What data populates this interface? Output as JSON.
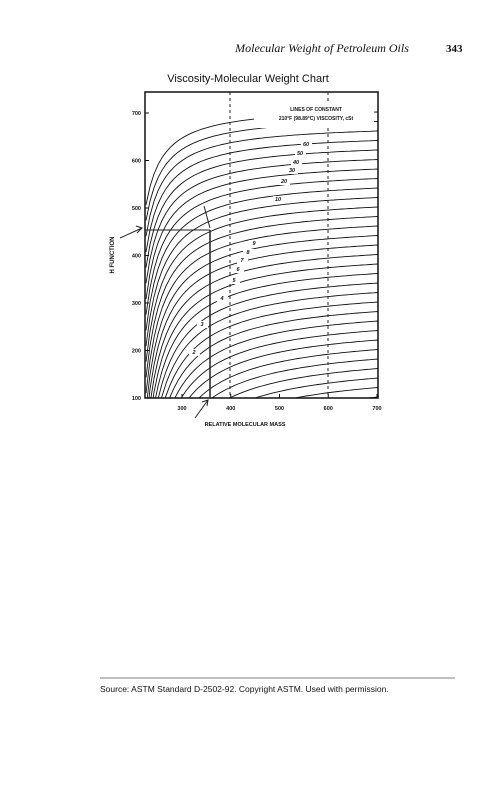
{
  "header": {
    "title": "Molecular Weight of Petroleum Oils",
    "page": "343"
  },
  "figure": {
    "title": "Viscosity-Molecular Weight Chart",
    "y_label": "H FUNCTION",
    "x_label": "RELATIVE MOLECULAR MASS",
    "legend": [
      "LINES OF CONSTANT",
      "210°F (98.89°C) VISCOSITY, cSt"
    ],
    "yticks": [
      100,
      200,
      300,
      400,
      500,
      600,
      700
    ],
    "xticks": [
      300,
      400,
      500,
      600,
      700
    ],
    "curve_labels": [
      "60",
      "50",
      "40",
      "30",
      "20",
      "10",
      "9",
      "8",
      "7",
      "6",
      "5",
      "4",
      "3",
      "2"
    ]
  },
  "footer": {
    "source": "Source: ASTM Standard D-2502-92. Copyright ASTM. Used with permission."
  }
}
